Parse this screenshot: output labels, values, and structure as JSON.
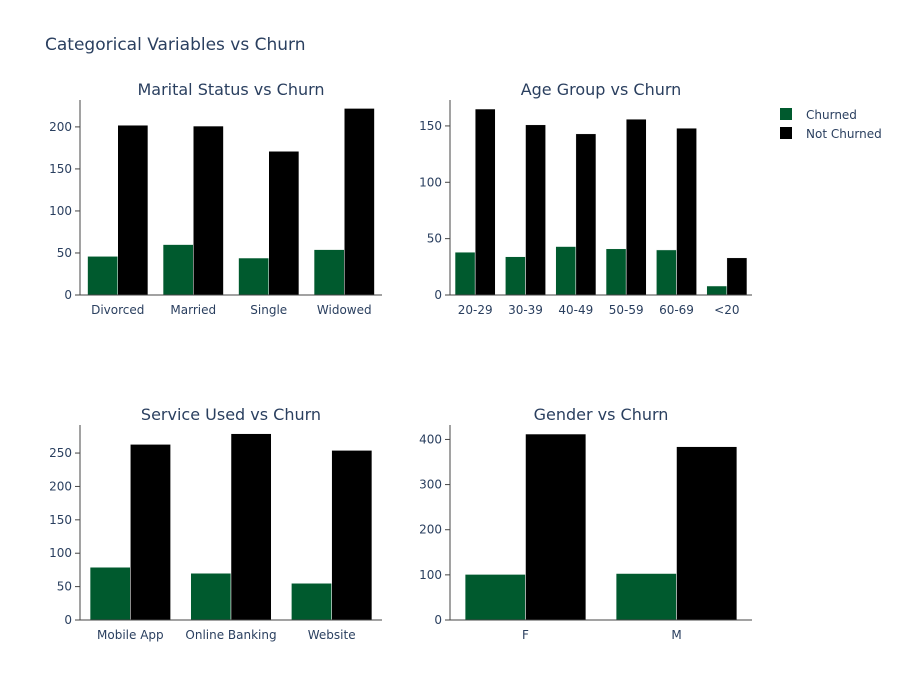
{
  "title": "Categorical Variables vs Churn",
  "legend": {
    "placement": "top-right",
    "items": [
      {
        "name": "Churned",
        "color": "#005a2e"
      },
      {
        "name": "Not Churned",
        "color": "#000000"
      }
    ]
  },
  "chart_data": [
    {
      "type": "bar",
      "title": "Marital Status vs Churn",
      "categories": [
        "Divorced",
        "Married",
        "Single",
        "Widowed"
      ],
      "series": [
        {
          "name": "Churned",
          "values": [
            46,
            60,
            44,
            54
          ]
        },
        {
          "name": "Not Churned",
          "values": [
            202,
            201,
            171,
            222
          ]
        }
      ],
      "ylim": [
        0,
        232
      ],
      "yticks": [
        0,
        50,
        100,
        150,
        200
      ]
    },
    {
      "type": "bar",
      "title": "Age Group vs Churn",
      "categories": [
        "20-29",
        "30-39",
        "40-49",
        "50-59",
        "60-69",
        "<20"
      ],
      "series": [
        {
          "name": "Churned",
          "values": [
            38,
            34,
            43,
            41,
            40,
            8
          ]
        },
        {
          "name": "Not Churned",
          "values": [
            165,
            151,
            143,
            156,
            148,
            33
          ]
        }
      ],
      "ylim": [
        0,
        173
      ],
      "yticks": [
        0,
        50,
        100,
        150
      ]
    },
    {
      "type": "bar",
      "title": "Service Used vs Churn",
      "categories": [
        "Mobile App",
        "Online Banking",
        "Website"
      ],
      "series": [
        {
          "name": "Churned",
          "values": [
            79,
            70,
            55
          ]
        },
        {
          "name": "Not Churned",
          "values": [
            263,
            279,
            254
          ]
        }
      ],
      "ylim": [
        0,
        292
      ],
      "yticks": [
        0,
        50,
        100,
        150,
        200,
        250
      ]
    },
    {
      "type": "bar",
      "title": "Gender vs Churn",
      "categories": [
        "F",
        "M"
      ],
      "series": [
        {
          "name": "Churned",
          "values": [
            101,
            103
          ]
        },
        {
          "name": "Not Churned",
          "values": [
            412,
            384
          ]
        }
      ],
      "ylim": [
        0,
        432
      ],
      "yticks": [
        0,
        100,
        200,
        300,
        400
      ]
    }
  ]
}
